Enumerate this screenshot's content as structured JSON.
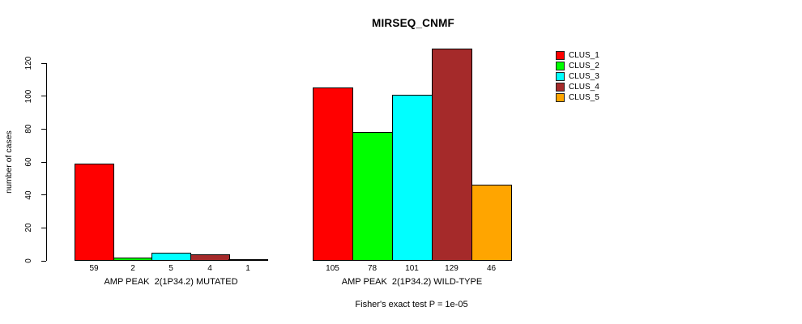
{
  "title": "MIRSEQ_CNMF",
  "footer": "Fisher's exact test P = 1e-05",
  "legend": {
    "entries": [
      {
        "label": "CLUS_1",
        "color": "#FF0000"
      },
      {
        "label": "CLUS_2",
        "color": "#00FF00"
      },
      {
        "label": "CLUS_3",
        "color": "#00FFFF"
      },
      {
        "label": "CLUS_4",
        "color": "#A52A2A"
      },
      {
        "label": "CLUS_5",
        "color": "#FFA500"
      }
    ]
  },
  "chart_data": {
    "type": "bar",
    "title": "MIRSEQ_CNMF",
    "xlabel": "",
    "ylabel": "number of cases",
    "ylim": [
      0,
      120
    ],
    "yticks": [
      0,
      20,
      40,
      60,
      80,
      100,
      120
    ],
    "grid": false,
    "legend_position": "right-outside",
    "series": [
      "CLUS_1",
      "CLUS_2",
      "CLUS_3",
      "CLUS_4",
      "CLUS_5"
    ],
    "colors": [
      "#FF0000",
      "#00FF00",
      "#00FFFF",
      "#A52A2A",
      "#FFA500"
    ],
    "groups": [
      {
        "label": "AMP PEAK  2(1P34.2) MUTATED",
        "values": [
          59,
          2,
          5,
          4,
          1
        ],
        "value_labels": [
          "59",
          "2",
          "5",
          "4",
          "1"
        ]
      },
      {
        "label": "AMP PEAK  2(1P34.2) WILD-TYPE",
        "values": [
          105,
          78,
          101,
          129,
          46
        ],
        "value_labels": [
          "105",
          "78",
          "101",
          "129",
          "46"
        ]
      }
    ],
    "annotation": "Fisher's exact test P = 1e-05"
  }
}
